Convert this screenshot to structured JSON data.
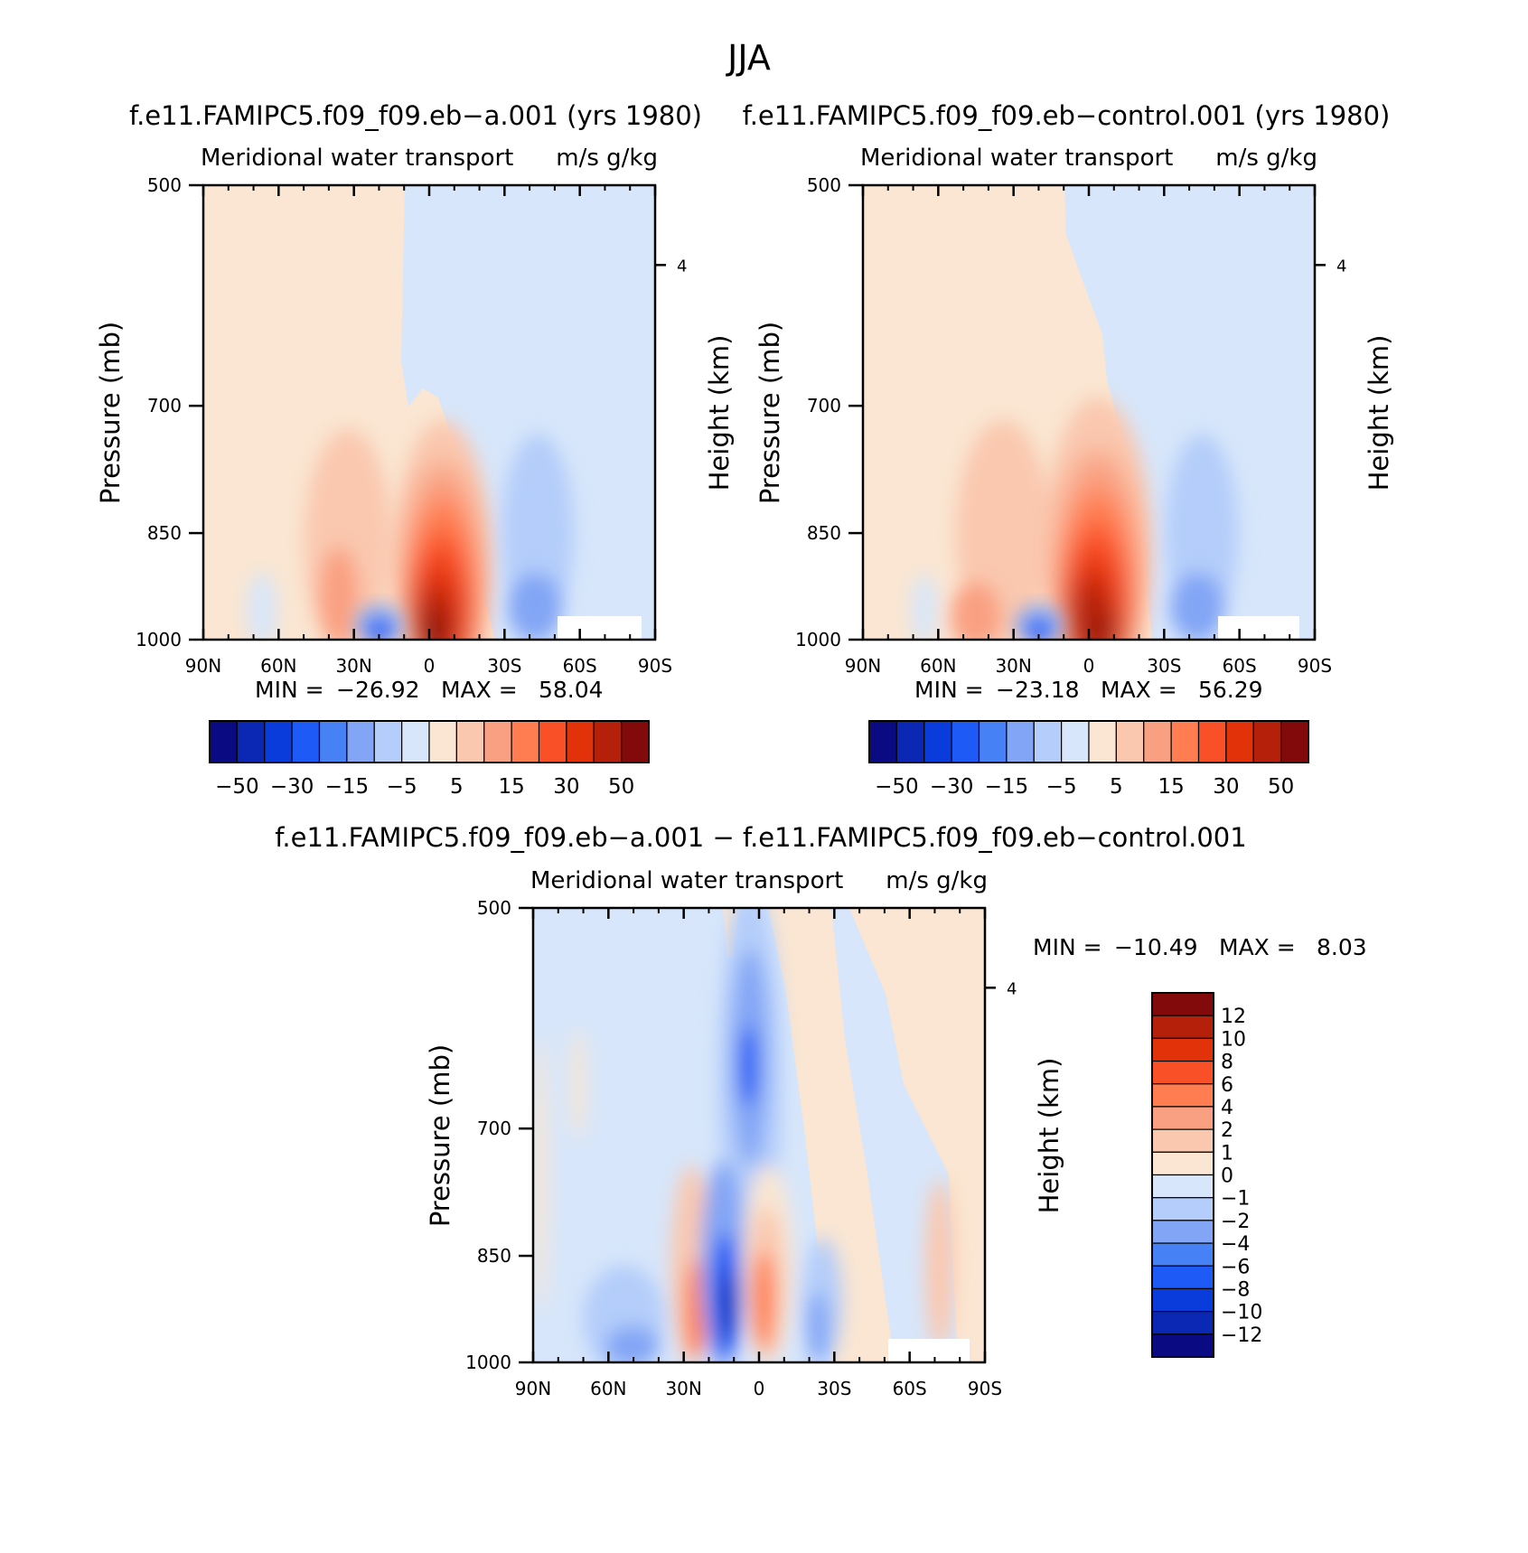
{
  "figure_title": "JJA",
  "chart_data": [
    {
      "type": "heatmap",
      "title": "f.e11.FAMIPC5.f09_f09.eb−a.001 (yrs 1980)",
      "subtitle_left": "Meridional water transport",
      "subtitle_right": "m/s g/kg",
      "xlabel": "",
      "ylabel": "Pressure (mb)",
      "ylabel_right": "Height (km)",
      "x_ticks": [
        "90N",
        "60N",
        "30N",
        "0",
        "30S",
        "60S",
        "90S"
      ],
      "y_ticks": [
        "500",
        "700",
        "850",
        "1000"
      ],
      "right_ticks": [
        "4"
      ],
      "stats": {
        "min_label": "MIN =",
        "min": "−26.92",
        "max_label": "MAX =",
        "max": "58.04"
      },
      "colorbar": {
        "orientation": "horizontal",
        "labels": [
          "−50",
          "−30",
          "−15",
          "−5",
          "5",
          "15",
          "30",
          "50"
        ],
        "colors": [
          "#0a0a82",
          "#0a28b4",
          "#0a3cdc",
          "#1e5af5",
          "#4682f5",
          "#82a5f5",
          "#b4cdfa",
          "#d7e6fa",
          "#fae6d2",
          "#fac8af",
          "#faa082",
          "#ff7d50",
          "#fa5028",
          "#e1320a",
          "#b4200a",
          "#820a0a"
        ]
      },
      "fields": {
        "ylim_mb": [
          500,
          1000
        ],
        "xlim": [
          "90N",
          "90S"
        ],
        "features": [
          {
            "sign": "positive",
            "lat": 5,
            "p_mb": 960,
            "peak": 58.04,
            "description": "tropical maximum near the surface"
          },
          {
            "sign": "positive",
            "lat": 35,
            "p_mb": 900,
            "peak": 15
          },
          {
            "sign": "negative",
            "lat": -35,
            "p_mb": 940,
            "peak": -15
          },
          {
            "sign": "negative",
            "lat": 18,
            "p_mb": 985,
            "peak": -26.92
          }
        ]
      }
    },
    {
      "type": "heatmap",
      "title": "f.e11.FAMIPC5.f09_f09.eb−control.001 (yrs 1980)",
      "subtitle_left": "Meridional water transport",
      "subtitle_right": "m/s g/kg",
      "xlabel": "",
      "ylabel": "Pressure (mb)",
      "ylabel_right": "Height (km)",
      "x_ticks": [
        "90N",
        "60N",
        "30N",
        "0",
        "30S",
        "60S",
        "90S"
      ],
      "y_ticks": [
        "500",
        "700",
        "850",
        "1000"
      ],
      "right_ticks": [
        "4"
      ],
      "stats": {
        "min_label": "MIN =",
        "min": "−23.18",
        "max_label": "MAX =",
        "max": "56.29"
      },
      "colorbar": {
        "orientation": "horizontal",
        "labels": [
          "−50",
          "−30",
          "−15",
          "−5",
          "5",
          "15",
          "30",
          "50"
        ],
        "colors": [
          "#0a0a82",
          "#0a28b4",
          "#0a3cdc",
          "#1e5af5",
          "#4682f5",
          "#82a5f5",
          "#b4cdfa",
          "#d7e6fa",
          "#fae6d2",
          "#fac8af",
          "#faa082",
          "#ff7d50",
          "#fa5028",
          "#e1320a",
          "#b4200a",
          "#820a0a"
        ]
      },
      "fields": {
        "ylim_mb": [
          500,
          1000
        ],
        "xlim": [
          "90N",
          "90S"
        ],
        "features": [
          {
            "sign": "positive",
            "lat": 3,
            "p_mb": 960,
            "peak": 56.29
          },
          {
            "sign": "positive",
            "lat": 35,
            "p_mb": 900,
            "peak": 15
          },
          {
            "sign": "negative",
            "lat": -35,
            "p_mb": 940,
            "peak": -15
          },
          {
            "sign": "negative",
            "lat": 15,
            "p_mb": 985,
            "peak": -23.18
          }
        ]
      }
    },
    {
      "type": "heatmap",
      "title": "f.e11.FAMIPC5.f09_f09.eb−a.001 − f.e11.FAMIPC5.f09_f09.eb−control.001",
      "subtitle_left": "Meridional water transport",
      "subtitle_right": "m/s g/kg",
      "xlabel": "",
      "ylabel": "Pressure (mb)",
      "ylabel_right": "Height (km)",
      "x_ticks": [
        "90N",
        "60N",
        "30N",
        "0",
        "30S",
        "60S",
        "90S"
      ],
      "y_ticks": [
        "500",
        "700",
        "850",
        "1000"
      ],
      "right_ticks": [
        "4"
      ],
      "stats": {
        "min_label": "MIN =",
        "min": "−10.49",
        "max_label": "MAX =",
        "max": "8.03"
      },
      "colorbar": {
        "orientation": "vertical",
        "labels": [
          "12",
          "10",
          "8",
          "6",
          "4",
          "2",
          "1",
          "0",
          "−1",
          "−2",
          "−4",
          "−6",
          "−8",
          "−10",
          "−12"
        ],
        "colors": [
          "#820a0a",
          "#b4200a",
          "#e1320a",
          "#fa5028",
          "#ff7d50",
          "#faa082",
          "#fac8af",
          "#fae6d2",
          "#d7e6fa",
          "#b4cdfa",
          "#82a5f5",
          "#4682f5",
          "#1e5af5",
          "#0a3cdc",
          "#0a28b4",
          "#0a0a82"
        ]
      },
      "fields": {
        "ylim_mb": [
          500,
          1000
        ],
        "xlim": [
          "90N",
          "90S"
        ],
        "features": [
          {
            "sign": "negative",
            "lat": 15,
            "p_mb": 920,
            "peak": -10.49
          },
          {
            "sign": "negative",
            "lat": 3,
            "p_mb": 700,
            "peak": -6
          },
          {
            "sign": "positive",
            "lat": -2,
            "p_mb": 920,
            "peak": 8.03
          },
          {
            "sign": "positive",
            "lat": 25,
            "p_mb": 960,
            "peak": 6
          }
        ]
      }
    }
  ]
}
